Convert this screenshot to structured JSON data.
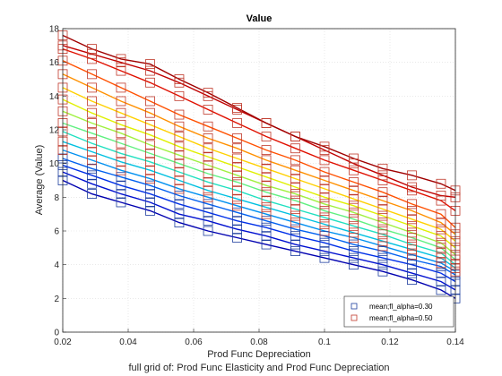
{
  "chart_data": {
    "type": "line",
    "title": "Value",
    "xlabel": "Prod Func Depreciation",
    "ylabel": "Average (Value)",
    "caption": "full grid of: Prod Func Elasticity and Prod Func Depreciation",
    "xlim": [
      0.02,
      0.14
    ],
    "ylim": [
      0,
      18
    ],
    "xticks": [
      "0.02",
      "0.04",
      "0.06",
      "0.08",
      "0.1",
      "0.12",
      "0.14"
    ],
    "yticks": [
      "0",
      "2",
      "4",
      "6",
      "8",
      "10",
      "12",
      "14",
      "16",
      "18"
    ],
    "grid": true,
    "legend_position": "bottom-right",
    "legend": [
      {
        "label": "mean;fl_alpha=0.30",
        "color": "#1f3f9f"
      },
      {
        "label": "mean;fl_alpha=0.50",
        "color": "#c0392b"
      }
    ],
    "x": [
      0.02,
      0.0289,
      0.0378,
      0.0467,
      0.0556,
      0.0644,
      0.0733,
      0.0822,
      0.0911,
      0.1,
      0.1089,
      0.1178,
      0.1267,
      0.1356,
      0.14
    ],
    "series": [
      {
        "color": "#0000b0",
        "values": [
          9.0,
          8.2,
          7.7,
          7.2,
          6.5,
          6.0,
          5.6,
          5.2,
          4.8,
          4.4,
          4.0,
          3.6,
          3.1,
          2.5,
          2.0
        ],
        "marker_color": "#1f3f9f"
      },
      {
        "color": "#0010d0",
        "values": [
          9.5,
          8.8,
          8.2,
          7.7,
          7.0,
          6.6,
          6.1,
          5.7,
          5.2,
          4.8,
          4.4,
          4.0,
          3.5,
          3.0,
          2.5
        ],
        "marker_color": "#1f3f9f"
      },
      {
        "color": "#0030e8",
        "values": [
          9.9,
          9.3,
          8.7,
          8.2,
          7.6,
          7.1,
          6.6,
          6.2,
          5.7,
          5.3,
          4.8,
          4.4,
          4.0,
          3.5,
          3.0
        ],
        "marker_color": "#1f3f9f"
      },
      {
        "color": "#0060f0",
        "values": [
          10.3,
          9.7,
          9.2,
          8.7,
          8.1,
          7.6,
          7.1,
          6.6,
          6.1,
          5.7,
          5.2,
          4.8,
          4.3,
          3.9,
          3.4
        ],
        "marker_color": "#1f3f9f"
      },
      {
        "color": "#0090f0",
        "values": [
          10.8,
          10.2,
          9.6,
          9.1,
          8.5,
          8.0,
          7.5,
          7.0,
          6.5,
          6.0,
          5.6,
          5.1,
          4.6,
          4.1,
          3.6
        ],
        "marker_color": "#c0392b"
      },
      {
        "color": "#00c0e0",
        "values": [
          11.3,
          10.7,
          10.1,
          9.6,
          9.0,
          8.4,
          7.9,
          7.4,
          6.9,
          6.4,
          5.9,
          5.4,
          4.9,
          4.4,
          3.8
        ],
        "marker_color": "#c0392b"
      },
      {
        "color": "#20e0c0",
        "values": [
          11.9,
          11.2,
          10.6,
          10.1,
          9.5,
          8.9,
          8.4,
          7.8,
          7.3,
          6.8,
          6.3,
          5.8,
          5.2,
          4.7,
          4.0
        ],
        "marker_color": "#c0392b"
      },
      {
        "color": "#60f080",
        "values": [
          12.4,
          11.8,
          11.2,
          10.6,
          10.0,
          9.4,
          8.9,
          8.3,
          7.8,
          7.2,
          6.7,
          6.1,
          5.6,
          5.0,
          4.3
        ],
        "marker_color": "#c0392b"
      },
      {
        "color": "#a0f040",
        "values": [
          13.1,
          12.4,
          11.8,
          11.1,
          10.5,
          9.9,
          9.3,
          8.7,
          8.2,
          7.6,
          7.1,
          6.5,
          5.9,
          5.3,
          4.6
        ],
        "marker_color": "#c0392b"
      },
      {
        "color": "#e0f000",
        "values": [
          13.8,
          13.0,
          12.3,
          11.7,
          11.0,
          10.4,
          9.8,
          9.2,
          8.6,
          8.0,
          7.5,
          6.9,
          6.3,
          5.7,
          5.0
        ],
        "marker_color": "#c0392b"
      },
      {
        "color": "#ffd000",
        "values": [
          14.5,
          13.7,
          13.0,
          12.3,
          11.6,
          10.9,
          10.3,
          9.7,
          9.1,
          8.5,
          7.9,
          7.3,
          6.7,
          6.1,
          5.4
        ],
        "marker_color": "#c0392b"
      },
      {
        "color": "#ff9000",
        "values": [
          15.3,
          14.5,
          13.7,
          13.0,
          12.2,
          11.5,
          10.9,
          10.2,
          9.6,
          9.0,
          8.4,
          7.8,
          7.2,
          6.5,
          5.8
        ],
        "marker_color": "#c0392b"
      },
      {
        "color": "#ff5000",
        "values": [
          16.1,
          15.3,
          14.5,
          13.7,
          12.9,
          12.2,
          11.5,
          10.8,
          10.2,
          9.5,
          8.9,
          8.3,
          7.6,
          7.0,
          6.2
        ],
        "marker_color": "#c0392b"
      },
      {
        "color": "#e01000",
        "values": [
          16.8,
          16.2,
          15.5,
          14.8,
          14.0,
          13.2,
          12.4,
          11.6,
          10.9,
          10.2,
          9.6,
          9.0,
          8.4,
          7.8,
          7.2
        ],
        "marker_color": "#c0392b"
      },
      {
        "color": "#c00000",
        "values": [
          17.0,
          16.5,
          16.0,
          15.5,
          14.8,
          14.0,
          13.2,
          12.4,
          11.6,
          10.8,
          10.0,
          9.3,
          8.6,
          8.1,
          8.0
        ],
        "marker_color": "#c0392b"
      },
      {
        "color": "#a00000",
        "values": [
          17.6,
          16.8,
          16.2,
          15.9,
          15.0,
          14.2,
          13.3,
          12.4,
          11.6,
          11.0,
          10.3,
          9.7,
          9.3,
          8.8,
          8.4
        ],
        "marker_color": "#c0392b"
      }
    ]
  }
}
